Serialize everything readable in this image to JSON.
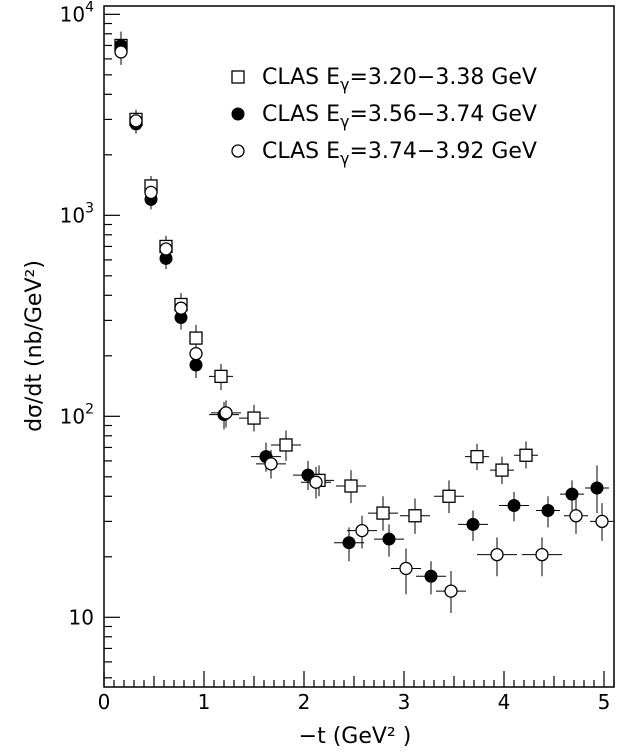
{
  "chart_data": {
    "type": "scatter",
    "xlabel": "−t  (GeV² )",
    "ylabel": "dσ/dt (nb/GeV²)",
    "xlim": [
      0,
      5.1
    ],
    "ylim": [
      4.5,
      11000
    ],
    "yscale": "log",
    "grid": false,
    "legend_position": "top-right",
    "x_ticks": [
      0,
      1,
      2,
      3,
      4,
      5
    ],
    "x_tick_labels": [
      "0",
      "1",
      "2",
      "3",
      "4",
      "5"
    ],
    "y_major_ticks": [
      10,
      100,
      1000,
      10000
    ],
    "y_tick_labels": [
      {
        "base": "10",
        "exp": ""
      },
      {
        "base": "10",
        "exp": "2"
      },
      {
        "base": "10",
        "exp": "3"
      },
      {
        "base": "10",
        "exp": "4"
      }
    ],
    "series": [
      {
        "name": "CLAS E",
        "name_sub": "γ",
        "name_rest": "=3.20−3.38 GeV",
        "marker": "open-square",
        "points": [
          {
            "x": 0.17,
            "y": 7000,
            "xerr": 0.05,
            "ylo": 5800,
            "yhi": 8200
          },
          {
            "x": 0.32,
            "y": 3000,
            "xerr": 0.05,
            "ylo": 2650,
            "yhi": 3350
          },
          {
            "x": 0.47,
            "y": 1400,
            "xerr": 0.05,
            "ylo": 1230,
            "yhi": 1570
          },
          {
            "x": 0.62,
            "y": 700,
            "xerr": 0.05,
            "ylo": 610,
            "yhi": 790
          },
          {
            "x": 0.77,
            "y": 360,
            "xerr": 0.05,
            "ylo": 310,
            "yhi": 410
          },
          {
            "x": 0.92,
            "y": 245,
            "xerr": 0.05,
            "ylo": 210,
            "yhi": 285
          },
          {
            "x": 1.17,
            "y": 158,
            "xerr": 0.12,
            "ylo": 135,
            "yhi": 182
          },
          {
            "x": 1.5,
            "y": 98,
            "xerr": 0.15,
            "ylo": 84,
            "yhi": 114
          },
          {
            "x": 1.82,
            "y": 72,
            "xerr": 0.15,
            "ylo": 60,
            "yhi": 85
          },
          {
            "x": 2.15,
            "y": 48,
            "xerr": 0.15,
            "ylo": 40,
            "yhi": 57
          },
          {
            "x": 2.47,
            "y": 45,
            "xerr": 0.15,
            "ylo": 37,
            "yhi": 54
          },
          {
            "x": 2.79,
            "y": 33,
            "xerr": 0.15,
            "ylo": 27,
            "yhi": 40
          },
          {
            "x": 3.11,
            "y": 32,
            "xerr": 0.15,
            "ylo": 26,
            "yhi": 39
          },
          {
            "x": 3.45,
            "y": 40,
            "xerr": 0.15,
            "ylo": 33,
            "yhi": 48
          },
          {
            "x": 3.73,
            "y": 63,
            "xerr": 0.12,
            "ylo": 54,
            "yhi": 73
          },
          {
            "x": 3.98,
            "y": 54,
            "xerr": 0.12,
            "ylo": 46,
            "yhi": 63
          },
          {
            "x": 4.22,
            "y": 64,
            "xerr": 0.12,
            "ylo": 55,
            "yhi": 75
          }
        ]
      },
      {
        "name": "CLAS E",
        "name_sub": "γ",
        "name_rest": "=3.56−3.74 GeV",
        "marker": "filled-circle",
        "points": [
          {
            "x": 0.17,
            "y": 7000,
            "xerr": 0.05,
            "ylo": 6000,
            "yhi": 8000
          },
          {
            "x": 0.32,
            "y": 2850,
            "xerr": 0.05,
            "ylo": 2550,
            "yhi": 3150
          },
          {
            "x": 0.47,
            "y": 1200,
            "xerr": 0.05,
            "ylo": 1070,
            "yhi": 1330
          },
          {
            "x": 0.62,
            "y": 610,
            "xerr": 0.05,
            "ylo": 540,
            "yhi": 680
          },
          {
            "x": 0.77,
            "y": 310,
            "xerr": 0.05,
            "ylo": 270,
            "yhi": 350
          },
          {
            "x": 0.92,
            "y": 180,
            "xerr": 0.05,
            "ylo": 155,
            "yhi": 205
          },
          {
            "x": 1.2,
            "y": 102,
            "xerr": 0.15,
            "ylo": 86,
            "yhi": 118
          },
          {
            "x": 1.62,
            "y": 63,
            "xerr": 0.15,
            "ylo": 53,
            "yhi": 74
          },
          {
            "x": 2.04,
            "y": 51,
            "xerr": 0.15,
            "ylo": 43,
            "yhi": 60
          },
          {
            "x": 2.45,
            "y": 23.5,
            "xerr": 0.15,
            "ylo": 19,
            "yhi": 28
          },
          {
            "x": 2.85,
            "y": 24.5,
            "xerr": 0.15,
            "ylo": 20,
            "yhi": 29
          },
          {
            "x": 3.27,
            "y": 16,
            "xerr": 0.15,
            "ylo": 13,
            "yhi": 19
          },
          {
            "x": 3.69,
            "y": 29,
            "xerr": 0.15,
            "ylo": 24,
            "yhi": 34
          },
          {
            "x": 4.1,
            "y": 36,
            "xerr": 0.15,
            "ylo": 30,
            "yhi": 42
          },
          {
            "x": 4.44,
            "y": 34,
            "xerr": 0.12,
            "ylo": 28,
            "yhi": 40
          },
          {
            "x": 4.68,
            "y": 41,
            "xerr": 0.12,
            "ylo": 34,
            "yhi": 48
          },
          {
            "x": 4.93,
            "y": 44,
            "xerr": 0.12,
            "ylo": 33,
            "yhi": 57
          }
        ]
      },
      {
        "name": "CLAS E",
        "name_sub": "γ",
        "name_rest": "=3.74−3.92 GeV",
        "marker": "open-circle",
        "points": [
          {
            "x": 0.17,
            "y": 6500,
            "xerr": 0.05,
            "ylo": 5600,
            "yhi": 7400
          },
          {
            "x": 0.32,
            "y": 2950,
            "xerr": 0.05,
            "ylo": 2650,
            "yhi": 3250
          },
          {
            "x": 0.47,
            "y": 1300,
            "xerr": 0.05,
            "ylo": 1160,
            "yhi": 1440
          },
          {
            "x": 0.62,
            "y": 680,
            "xerr": 0.05,
            "ylo": 600,
            "yhi": 760
          },
          {
            "x": 0.77,
            "y": 345,
            "xerr": 0.05,
            "ylo": 300,
            "yhi": 390
          },
          {
            "x": 0.92,
            "y": 205,
            "xerr": 0.05,
            "ylo": 178,
            "yhi": 232
          },
          {
            "x": 1.22,
            "y": 104,
            "xerr": 0.15,
            "ylo": 88,
            "yhi": 120
          },
          {
            "x": 1.67,
            "y": 58,
            "xerr": 0.15,
            "ylo": 49,
            "yhi": 68
          },
          {
            "x": 2.12,
            "y": 47,
            "xerr": 0.15,
            "ylo": 39,
            "yhi": 56
          },
          {
            "x": 2.58,
            "y": 27,
            "xerr": 0.15,
            "ylo": 22,
            "yhi": 32
          },
          {
            "x": 3.02,
            "y": 17.5,
            "xerr": 0.15,
            "ylo": 13,
            "yhi": 22
          },
          {
            "x": 3.47,
            "y": 13.5,
            "xerr": 0.15,
            "ylo": 10.5,
            "yhi": 17
          },
          {
            "x": 3.93,
            "y": 20.5,
            "xerr": 0.2,
            "ylo": 16,
            "yhi": 25
          },
          {
            "x": 4.38,
            "y": 20.5,
            "xerr": 0.2,
            "ylo": 16,
            "yhi": 25
          },
          {
            "x": 4.72,
            "y": 32,
            "xerr": 0.12,
            "ylo": 26,
            "yhi": 39
          },
          {
            "x": 4.98,
            "y": 30,
            "xerr": 0.12,
            "ylo": 24,
            "yhi": 37
          }
        ]
      }
    ]
  }
}
